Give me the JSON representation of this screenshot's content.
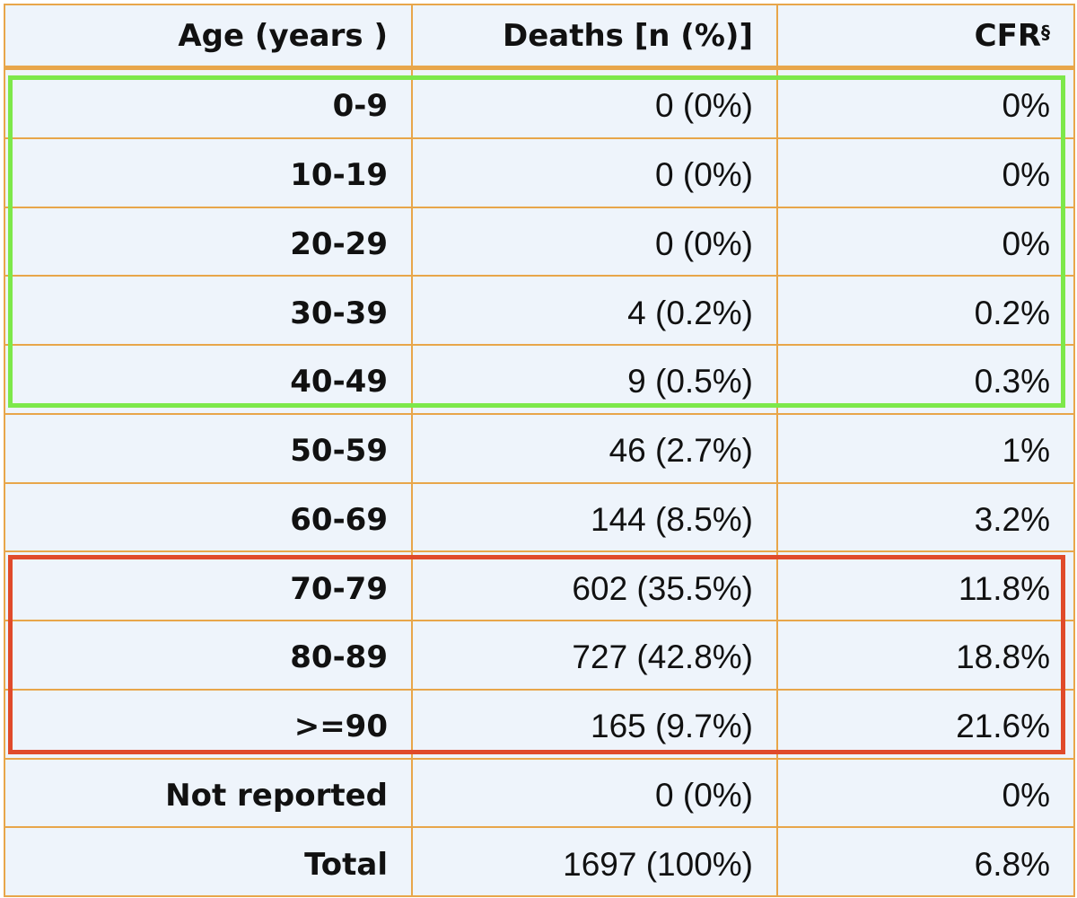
{
  "table": {
    "header": [
      "Age (years )",
      "Deaths [n (%)]",
      "CFR"
    ],
    "header_superscript": "§",
    "rows": [
      [
        "0-9",
        "0 (0%)",
        "0%"
      ],
      [
        "10-19",
        "0 (0%)",
        "0%"
      ],
      [
        "20-29",
        "0 (0%)",
        "0%"
      ],
      [
        "30-39",
        "4 (0.2%)",
        "0.2%"
      ],
      [
        "40-49",
        "9 (0.5%)",
        "0.3%"
      ],
      [
        "50-59",
        "46 (2.7%)",
        "1%"
      ],
      [
        "60-69",
        "144 (8.5%)",
        "3.2%"
      ],
      [
        "70-79",
        "602 (35.5%)",
        "11.8%"
      ],
      [
        "80-89",
        "727 (42.8%)",
        "18.8%"
      ],
      [
        ">=90",
        "165 (9.7%)",
        "21.6%"
      ],
      [
        "Not reported",
        "0 (0%)",
        "0%"
      ],
      [
        "Total",
        "1697 (100%)",
        "6.8%"
      ]
    ]
  }
}
